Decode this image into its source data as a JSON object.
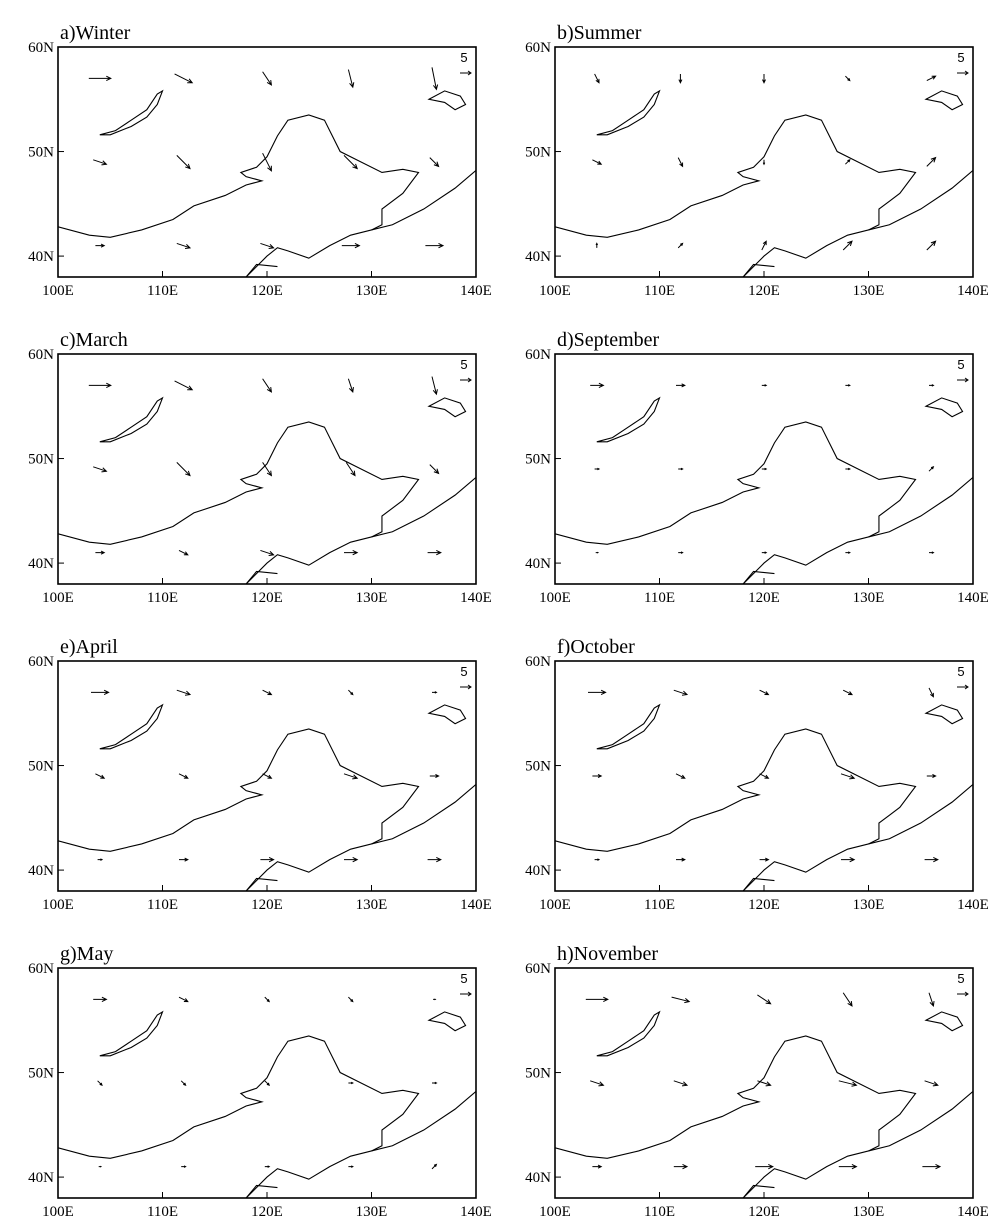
{
  "panels": [
    {
      "title": "a)Winter",
      "u": [
        5,
        4,
        2,
        1,
        1,
        3,
        3,
        2,
        3,
        2,
        2,
        3,
        3,
        4,
        4
      ],
      "v": [
        0,
        -2,
        -3,
        -4,
        -5,
        -1,
        -3,
        -4,
        -3,
        -2,
        0,
        -1,
        -1,
        0,
        0
      ]
    },
    {
      "title": "b)Summer",
      "u": [
        1,
        0,
        0,
        1,
        2,
        2,
        1,
        0,
        1,
        2,
        0,
        1,
        1,
        2,
        2
      ],
      "v": [
        -2,
        -2,
        -2,
        -1,
        1,
        -1,
        -2,
        -1,
        1,
        2,
        1,
        1,
        2,
        2,
        2
      ]
    },
    {
      "title": "c)March",
      "u": [
        5,
        4,
        2,
        1,
        1,
        3,
        3,
        2,
        2,
        2,
        2,
        2,
        3,
        3,
        3
      ],
      "v": [
        0,
        -2,
        -3,
        -3,
        -4,
        -1,
        -3,
        -3,
        -3,
        -2,
        0,
        -1,
        -1,
        0,
        0
      ]
    },
    {
      "title": "d)September",
      "u": [
        3,
        2,
        1,
        1,
        1,
        1,
        1,
        1,
        1,
        1,
        0.5,
        1,
        1,
        1,
        1
      ],
      "v": [
        0,
        0,
        0,
        0,
        0,
        0,
        0,
        0,
        0,
        1,
        0,
        0,
        0,
        0,
        0
      ]
    },
    {
      "title": "e)April",
      "u": [
        4,
        3,
        2,
        1,
        1,
        2,
        2,
        2,
        3,
        2,
        1,
        2,
        3,
        3,
        3
      ],
      "v": [
        0,
        -1,
        -1,
        -1,
        0,
        -1,
        -1,
        -1,
        -1,
        0,
        0,
        0,
        0,
        0,
        0
      ]
    },
    {
      "title": "f)October",
      "u": [
        4,
        3,
        2,
        2,
        1,
        2,
        2,
        2,
        3,
        2,
        1,
        2,
        2,
        3,
        3
      ],
      "v": [
        0,
        -1,
        -1,
        -1,
        -2,
        0,
        -1,
        -1,
        -1,
        0,
        0,
        0,
        0,
        0,
        0
      ]
    },
    {
      "title": "g)May",
      "u": [
        3,
        2,
        1,
        1,
        0.5,
        1,
        1,
        1,
        1,
        1,
        0.5,
        1,
        1,
        1,
        1
      ],
      "v": [
        0,
        -1,
        -1,
        -1,
        0,
        -1,
        -1,
        -1,
        0,
        0,
        0,
        0,
        0,
        0,
        1
      ]
    },
    {
      "title": "h)November",
      "u": [
        5,
        4,
        3,
        2,
        1,
        3,
        3,
        3,
        4,
        3,
        2,
        3,
        4,
        4,
        4
      ],
      "v": [
        0,
        -1,
        -2,
        -3,
        -3,
        -1,
        -1,
        -1,
        -1,
        -1,
        0,
        0,
        0,
        0,
        0
      ]
    }
  ],
  "grid": {
    "lon": [
      104,
      112,
      120,
      128,
      136
    ],
    "lat": [
      57,
      49,
      41
    ]
  },
  "xlim": [
    100,
    140
  ],
  "ylim": [
    38,
    60
  ],
  "xticks": [
    {
      "value": 100,
      "label": "100E"
    },
    {
      "value": 110,
      "label": "110E"
    },
    {
      "value": 120,
      "label": "120E"
    },
    {
      "value": 130,
      "label": "130E"
    },
    {
      "value": 140,
      "label": "140E"
    }
  ],
  "yticks": [
    {
      "value": 40,
      "label": "40N"
    },
    {
      "value": 50,
      "label": "50N"
    },
    {
      "value": 60,
      "label": "60N"
    }
  ],
  "reference_vector": 5
}
